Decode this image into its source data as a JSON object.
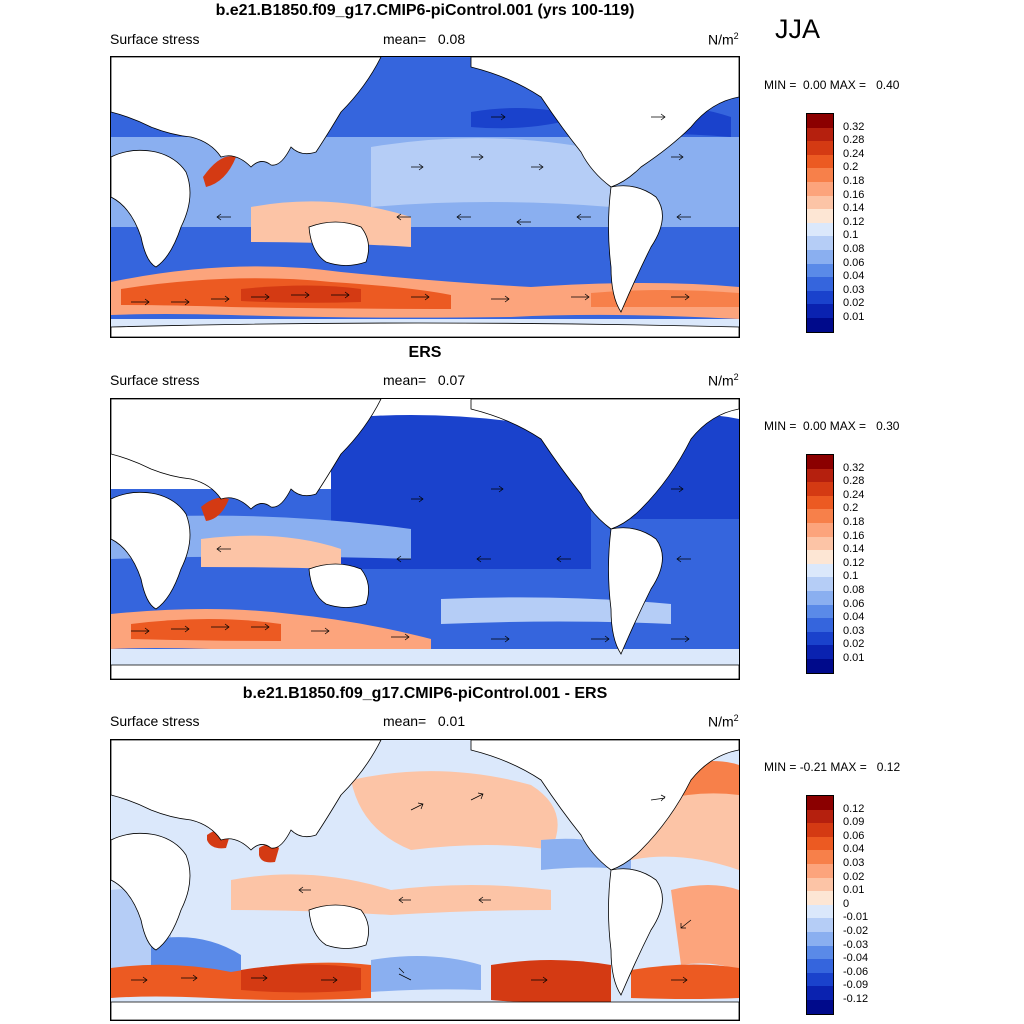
{
  "season": "JJA",
  "panels": [
    {
      "title": "b.e21.B1850.f09_g17.CMIP6-piControl.001 (yrs 100-119)",
      "variable": "Surface stress",
      "mean_label": "mean=",
      "mean_value": "0.08",
      "units_base": "N/m",
      "units_exp": "2",
      "min_label": "MIN =",
      "min_value": "0.00",
      "max_label": "MAX =",
      "max_value": "0.40",
      "colorbar": {
        "labels": [
          "0.32",
          "0.28",
          "0.24",
          "0.2",
          "0.18",
          "0.16",
          "0.14",
          "0.12",
          "0.1",
          "0.08",
          "0.06",
          "0.04",
          "0.03",
          "0.02",
          "0.01"
        ],
        "colors": [
          "#8b0000",
          "#b5200e",
          "#d43a13",
          "#ec5a22",
          "#f7804a",
          "#fca47c",
          "#fcc4a6",
          "#fde6d4",
          "#dbe8fb",
          "#b5cdf6",
          "#8aaff0",
          "#5a8ae8",
          "#3565dd",
          "#1a42cc",
          "#0a22b0",
          "#000a8b"
        ]
      }
    },
    {
      "title": "ERS",
      "variable": "Surface stress",
      "mean_label": "mean=",
      "mean_value": "0.07",
      "units_base": "N/m",
      "units_exp": "2",
      "min_label": "MIN =",
      "min_value": "0.00",
      "max_label": "MAX =",
      "max_value": "0.30",
      "colorbar": {
        "labels": [
          "0.32",
          "0.28",
          "0.24",
          "0.2",
          "0.18",
          "0.16",
          "0.14",
          "0.12",
          "0.1",
          "0.08",
          "0.06",
          "0.04",
          "0.03",
          "0.02",
          "0.01"
        ],
        "colors": [
          "#8b0000",
          "#b5200e",
          "#d43a13",
          "#ec5a22",
          "#f7804a",
          "#fca47c",
          "#fcc4a6",
          "#fde6d4",
          "#dbe8fb",
          "#b5cdf6",
          "#8aaff0",
          "#5a8ae8",
          "#3565dd",
          "#1a42cc",
          "#0a22b0",
          "#000a8b"
        ]
      }
    },
    {
      "title": "b.e21.B1850.f09_g17.CMIP6-piControl.001 - ERS",
      "variable": "Surface stress",
      "mean_label": "mean=",
      "mean_value": "0.01",
      "units_base": "N/m",
      "units_exp": "2",
      "min_label": "MIN =",
      "min_value": "-0.21",
      "max_label": "MAX =",
      "max_value": "0.12",
      "colorbar": {
        "labels": [
          "0.12",
          "0.09",
          "0.06",
          "0.04",
          "0.03",
          "0.02",
          "0.01",
          "0",
          "-0.01",
          "-0.02",
          "-0.03",
          "-0.04",
          "-0.06",
          "-0.09",
          "-0.12"
        ],
        "colors": [
          "#8b0000",
          "#b5200e",
          "#d43a13",
          "#ec5a22",
          "#f7804a",
          "#fca47c",
          "#fcc4a6",
          "#fde6d4",
          "#dbe8fb",
          "#b5cdf6",
          "#8aaff0",
          "#5a8ae8",
          "#3565dd",
          "#1a42cc",
          "#0a22b0",
          "#000a8b"
        ]
      }
    }
  ]
}
